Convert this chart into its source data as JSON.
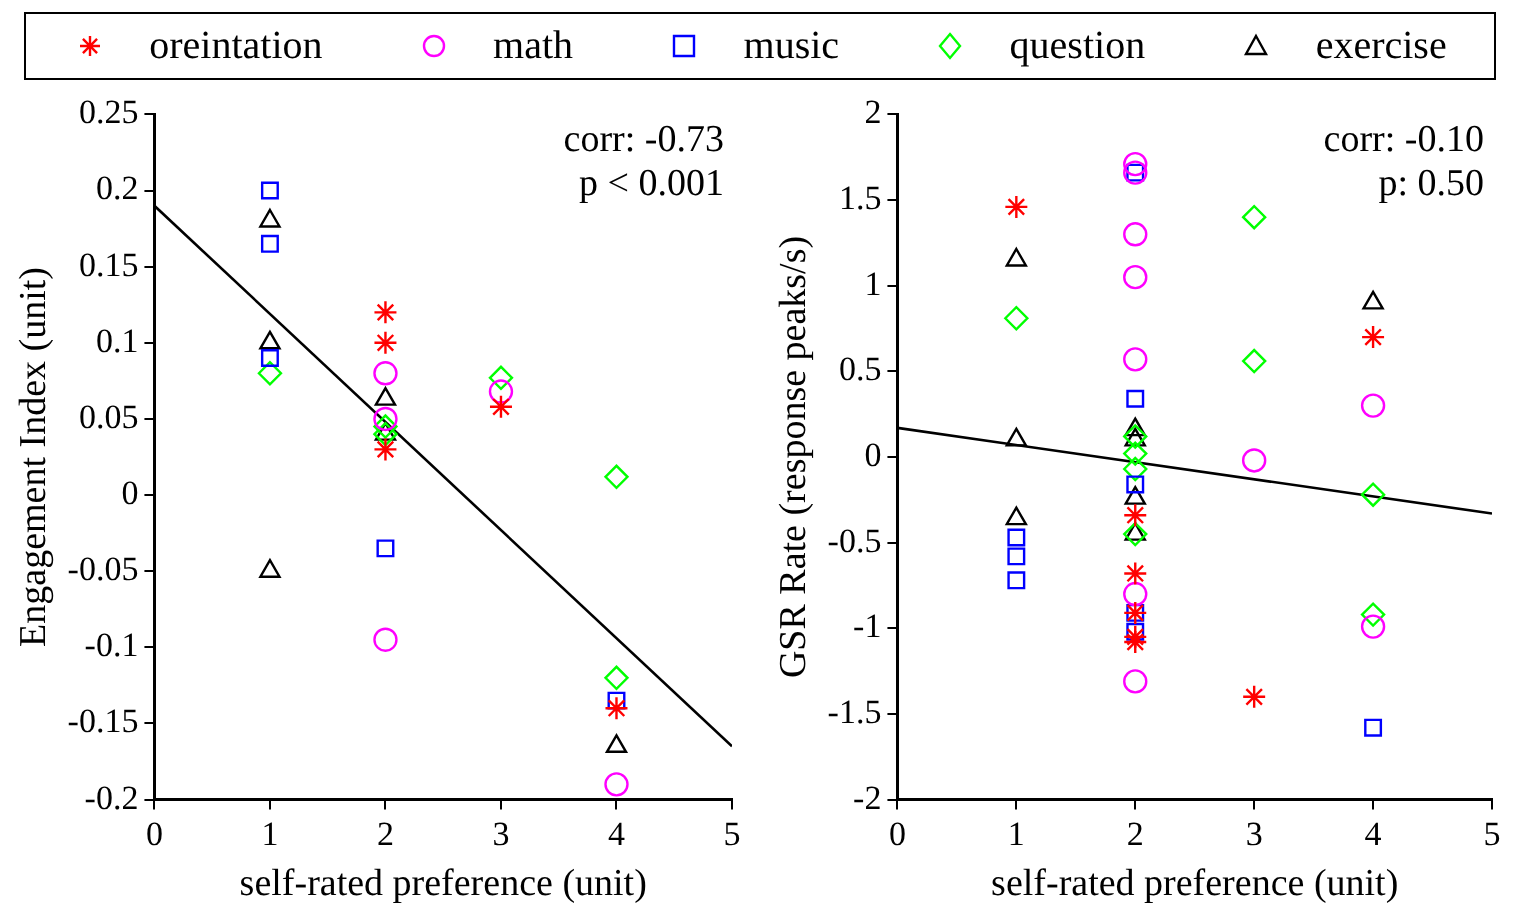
{
  "chart_data": [
    {
      "type": "scatter",
      "xlabel": "self-rated preference (unit)",
      "ylabel": "Engagement Index (unit)",
      "xlim": [
        0,
        5
      ],
      "xticks": [
        0,
        1,
        2,
        3,
        4,
        5
      ],
      "ylim": [
        -0.2,
        0.25
      ],
      "yticks": [
        -0.2,
        -0.15,
        -0.1,
        -0.05,
        0,
        0.05,
        0.1,
        0.15,
        0.2,
        0.25
      ],
      "grid": false,
      "legend": "top",
      "annotations": [
        "corr: -0.73",
        "p < 0.001"
      ],
      "series": [
        {
          "name": "oreintation",
          "color": "#ff0000",
          "marker": "cross",
          "x": [
            2,
            2,
            2,
            3,
            4
          ],
          "values": [
            0.12,
            0.1,
            0.03,
            0.058,
            -0.14
          ]
        },
        {
          "name": "math",
          "color": "#ff00ff",
          "marker": "circle",
          "x": [
            2,
            2,
            2,
            3,
            4
          ],
          "values": [
            0.08,
            0.05,
            -0.095,
            0.068,
            -0.19
          ]
        },
        {
          "name": "music",
          "color": "#0000ff",
          "marker": "square",
          "x": [
            1,
            1,
            1,
            2,
            4
          ],
          "values": [
            0.2,
            0.165,
            0.09,
            -0.035,
            -0.135
          ]
        },
        {
          "name": "question",
          "color": "#00ff00",
          "marker": "diamond",
          "x": [
            1,
            2,
            2,
            3,
            4,
            4
          ],
          "values": [
            0.08,
            0.045,
            0.04,
            0.077,
            0.012,
            -0.12
          ]
        },
        {
          "name": "exercise",
          "color": "#000000",
          "marker": "triangle",
          "x": [
            1,
            1,
            1,
            2,
            2,
            4
          ],
          "values": [
            0.18,
            0.1,
            -0.05,
            0.063,
            0.04,
            -0.165
          ]
        },
        {
          "type": "line",
          "color": "#000000",
          "marker": "none",
          "line_style": "solid",
          "x": [
            0,
            5
          ],
          "values": [
            0.19,
            -0.165
          ]
        }
      ]
    },
    {
      "type": "scatter",
      "xlabel": "self-rated preference (unit)",
      "ylabel": "GSR Rate (response peaks/s)",
      "xlim": [
        0,
        5
      ],
      "xticks": [
        0,
        1,
        2,
        3,
        4,
        5
      ],
      "ylim": [
        -2,
        2
      ],
      "yticks": [
        -2,
        -1.5,
        -1,
        -0.5,
        0,
        0.5,
        1,
        1.5,
        2
      ],
      "grid": false,
      "annotations": [
        "corr: -0.10",
        "p: 0.50"
      ],
      "series": [
        {
          "color": "#ff0000",
          "marker": "cross",
          "x": [
            1,
            2,
            2,
            2,
            2,
            2,
            3,
            4
          ],
          "values": [
            1.46,
            -0.34,
            -0.68,
            -0.91,
            -1.05,
            -1.08,
            -1.4,
            0.7
          ]
        },
        {
          "color": "#ff00ff",
          "marker": "circle",
          "x": [
            2,
            2,
            2,
            2,
            2,
            2,
            2,
            3,
            4,
            4
          ],
          "values": [
            1.71,
            1.66,
            1.3,
            1.05,
            0.57,
            -0.8,
            -1.31,
            -0.02,
            0.3,
            -0.99
          ]
        },
        {
          "color": "#0000ff",
          "marker": "square",
          "x": [
            1,
            1,
            1,
            2,
            2,
            2,
            2,
            2,
            4
          ],
          "values": [
            -0.47,
            -0.58,
            -0.72,
            1.66,
            0.34,
            -0.16,
            -0.91,
            -1.02,
            -1.58
          ]
        },
        {
          "color": "#00ff00",
          "marker": "diamond",
          "x": [
            1,
            2,
            2,
            2,
            2,
            3,
            3,
            4,
            4
          ],
          "values": [
            0.81,
            0.12,
            0.02,
            -0.07,
            -0.45,
            1.4,
            0.56,
            -0.22,
            -0.92
          ]
        },
        {
          "color": "#000000",
          "marker": "triangle",
          "x": [
            1,
            1,
            1,
            2,
            2,
            2,
            2,
            4
          ],
          "values": [
            1.15,
            0.1,
            -0.36,
            0.16,
            0.1,
            -0.24,
            -0.45,
            0.9
          ]
        },
        {
          "type": "line",
          "color": "#000000",
          "marker": "none",
          "line_style": "solid",
          "x": [
            0,
            5
          ],
          "values": [
            0.17,
            -0.33
          ]
        }
      ]
    }
  ]
}
